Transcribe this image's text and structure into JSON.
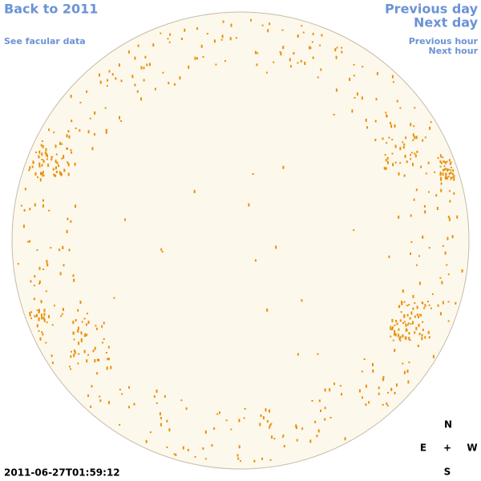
{
  "nav": {
    "back": "Back to 2011",
    "facular": "See facular data",
    "previous_day": "Previous day",
    "next_day": "Next day",
    "previous_hour": "Previous hour",
    "next_hour": "Next hour"
  },
  "timestamp": "2011-06-27T01:59:12",
  "compass": {
    "north": "N",
    "east": "E",
    "center": "+",
    "west": "W",
    "south": "S"
  }
}
